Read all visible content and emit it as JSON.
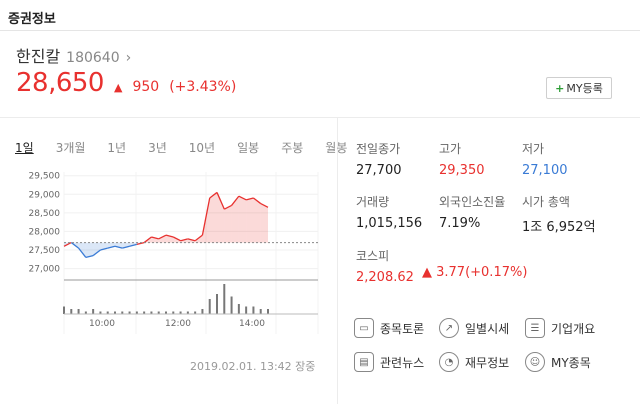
{
  "header": {
    "title": "증권정보"
  },
  "stock": {
    "name": "한진칼",
    "code": "180640",
    "price": "28,650",
    "change_amount": "950",
    "change_percent": "(+3.43%)",
    "my_button": "MY등록",
    "color_up": "#e8312f"
  },
  "tabs": [
    "1일",
    "3개월",
    "1년",
    "3년",
    "10년",
    "일봉",
    "주봉",
    "월봉"
  ],
  "timestamp": "2019.02.01. 13:42 장중",
  "info": {
    "prev_close_label": "전일종가",
    "prev_close": "27,700",
    "high_label": "고가",
    "high": "29,350",
    "low_label": "저가",
    "low": "27,100",
    "volume_label": "거래량",
    "volume": "1,015,156",
    "foreign_label": "외국인소진율",
    "foreign": "7.19%",
    "marketcap_label": "시가 총액",
    "marketcap": "1조 6,952억",
    "kospi_label": "코스피",
    "kospi": "2,208.62",
    "kospi_change": "▲ 3.77(+0.17%)"
  },
  "menu": {
    "discussion": "종목토론",
    "daily": "일별시세",
    "company": "기업개요",
    "news": "관련뉴스",
    "finance": "재무정보",
    "my": "MY종목"
  },
  "chart_data": {
    "type": "line",
    "ylim": [
      26800,
      29600
    ],
    "yticks": [
      "29,500",
      "29,000",
      "28,500",
      "28,000",
      "27,500",
      "27,000"
    ],
    "xticks": [
      "10:00",
      "12:00",
      "14:00"
    ],
    "baseline": 27700,
    "x": [
      "09:00",
      "09:10",
      "09:20",
      "09:30",
      "09:40",
      "09:50",
      "10:00",
      "10:10",
      "10:20",
      "10:30",
      "10:40",
      "10:50",
      "11:00",
      "11:10",
      "11:20",
      "11:30",
      "11:40",
      "11:50",
      "12:00",
      "12:10",
      "12:20",
      "12:30",
      "12:40",
      "12:50",
      "13:00",
      "13:10",
      "13:20",
      "13:30",
      "13:40"
    ],
    "values": [
      27600,
      27700,
      27550,
      27300,
      27350,
      27500,
      27550,
      27600,
      27550,
      27600,
      27650,
      27700,
      27850,
      27800,
      27900,
      27850,
      27750,
      27800,
      27750,
      27900,
      28900,
      29050,
      28600,
      28700,
      28950,
      28850,
      28900,
      28750,
      28650
    ],
    "volumes": [
      3,
      2,
      2,
      1,
      2,
      1,
      1,
      1,
      1,
      1,
      1,
      1,
      1,
      1,
      1,
      1,
      1,
      1,
      1,
      2,
      6,
      8,
      12,
      7,
      4,
      3,
      3,
      2,
      2
    ]
  }
}
